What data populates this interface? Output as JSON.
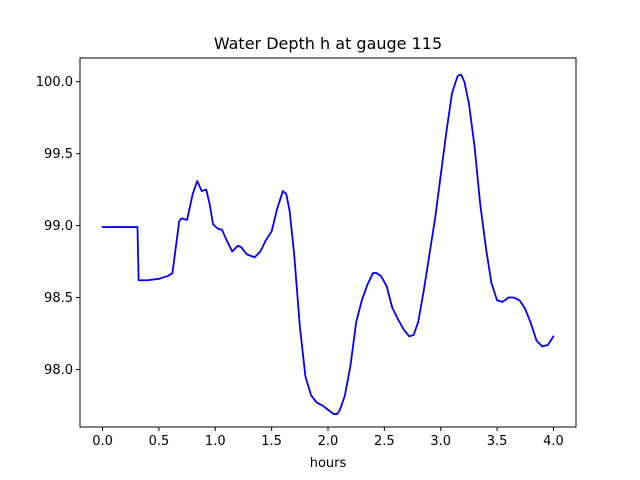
{
  "chart_data": {
    "type": "line",
    "title": "Water Depth h at gauge 115",
    "xlabel": "hours",
    "ylabel": "",
    "xlim": [
      -0.2,
      4.2
    ],
    "ylim": [
      97.6,
      100.165
    ],
    "xticks": [
      0.0,
      0.5,
      1.0,
      1.5,
      2.0,
      2.5,
      3.0,
      3.5,
      4.0
    ],
    "xtick_labels": [
      "0.0",
      "0.5",
      "1.0",
      "1.5",
      "2.0",
      "2.5",
      "3.0",
      "3.5",
      "4.0"
    ],
    "yticks": [
      98.0,
      98.5,
      99.0,
      99.5,
      100.0
    ],
    "ytick_labels": [
      "98.0",
      "98.5",
      "99.0",
      "99.5",
      "100.0"
    ],
    "grid": false,
    "series": [
      {
        "color": "#0000ff",
        "x": [
          0.0,
          0.1,
          0.2,
          0.3,
          0.31,
          0.32,
          0.4,
          0.5,
          0.58,
          0.62,
          0.65,
          0.68,
          0.7,
          0.75,
          0.8,
          0.84,
          0.88,
          0.92,
          0.95,
          0.98,
          1.02,
          1.06,
          1.1,
          1.15,
          1.2,
          1.23,
          1.28,
          1.35,
          1.4,
          1.45,
          1.5,
          1.55,
          1.6,
          1.63,
          1.66,
          1.7,
          1.75,
          1.8,
          1.85,
          1.9,
          1.95,
          2.0,
          2.05,
          2.08,
          2.1,
          2.12,
          2.15,
          2.2,
          2.25,
          2.3,
          2.35,
          2.4,
          2.43,
          2.47,
          2.52,
          2.57,
          2.62,
          2.67,
          2.72,
          2.76,
          2.8,
          2.85,
          2.9,
          2.95,
          3.0,
          3.05,
          3.1,
          3.15,
          3.18,
          3.21,
          3.25,
          3.3,
          3.35,
          3.4,
          3.45,
          3.5,
          3.55,
          3.6,
          3.65,
          3.7,
          3.75,
          3.8,
          3.85,
          3.9,
          3.95,
          4.0
        ],
        "y": [
          98.99,
          98.99,
          98.99,
          98.99,
          98.99,
          98.62,
          98.62,
          98.63,
          98.65,
          98.67,
          98.85,
          99.03,
          99.05,
          99.04,
          99.22,
          99.31,
          99.24,
          99.25,
          99.15,
          99.01,
          98.98,
          98.97,
          98.9,
          98.82,
          98.86,
          98.85,
          98.8,
          98.78,
          98.82,
          98.9,
          98.96,
          99.12,
          99.24,
          99.22,
          99.1,
          98.8,
          98.3,
          97.95,
          97.82,
          97.77,
          97.75,
          97.72,
          97.69,
          97.69,
          97.71,
          97.75,
          97.82,
          98.03,
          98.33,
          98.48,
          98.59,
          98.67,
          98.67,
          98.65,
          98.58,
          98.43,
          98.35,
          98.28,
          98.23,
          98.24,
          98.33,
          98.55,
          98.8,
          99.05,
          99.35,
          99.65,
          99.92,
          100.04,
          100.05,
          100.0,
          99.85,
          99.55,
          99.15,
          98.85,
          98.6,
          98.48,
          98.47,
          98.5,
          98.5,
          98.48,
          98.42,
          98.32,
          98.2,
          98.16,
          98.17,
          98.23
        ]
      }
    ]
  }
}
